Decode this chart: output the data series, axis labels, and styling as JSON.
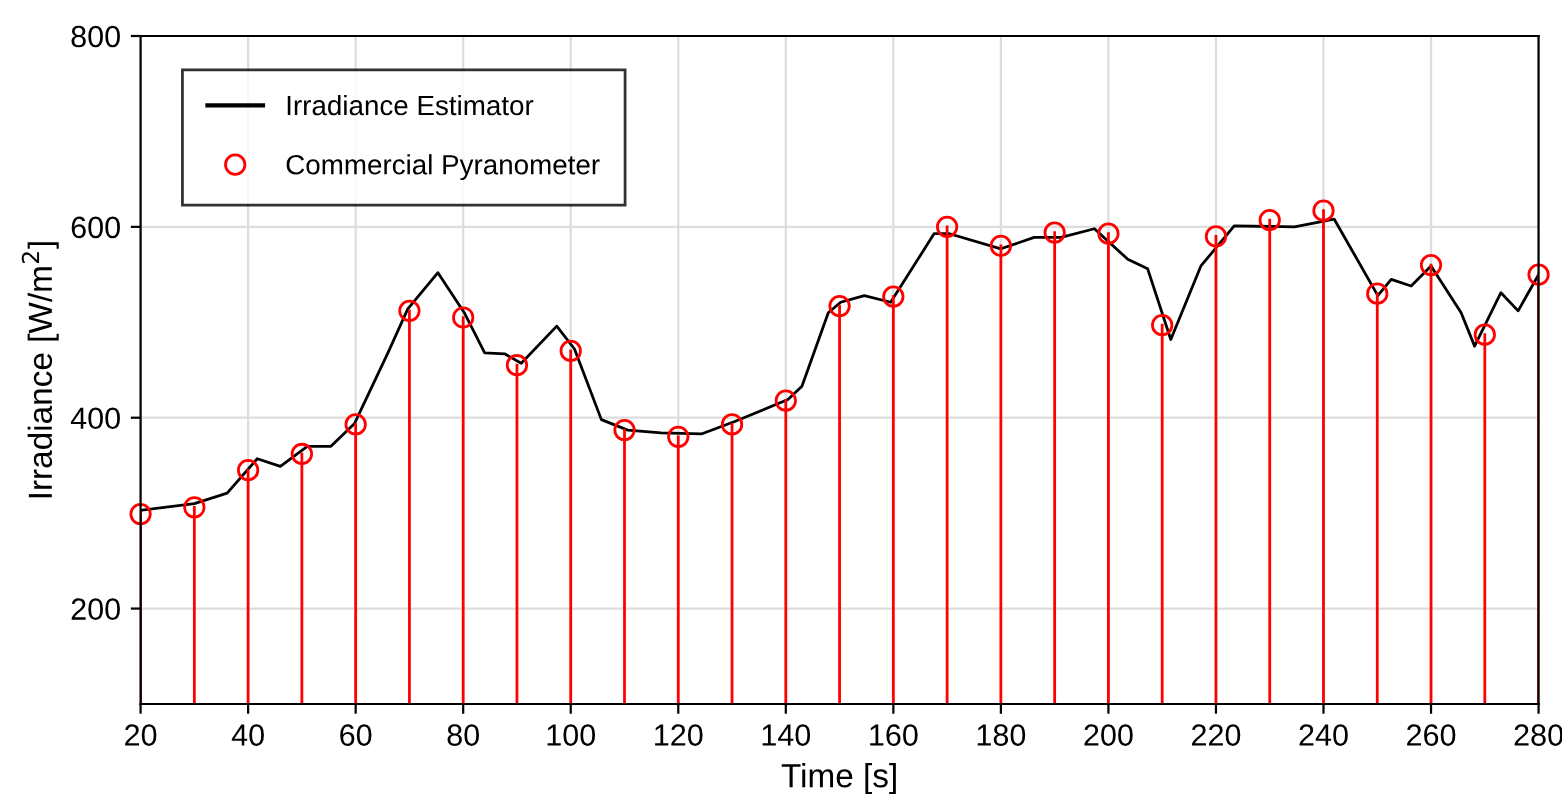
{
  "chart_data": {
    "type": "line",
    "xlabel": "Time [s]",
    "ylabel": "Irradiance [W/m$^{2}$]",
    "xlim": [
      20,
      280
    ],
    "ylim": [
      100,
      800
    ],
    "xticks": [
      20,
      40,
      60,
      80,
      100,
      120,
      140,
      160,
      180,
      200,
      220,
      240,
      260,
      280
    ],
    "yticks": [
      200,
      400,
      600,
      800
    ],
    "grid": true,
    "legend": "top left",
    "series": [
      {
        "name": "Irradiance Estimator",
        "color": "#000000",
        "marker": "none",
        "line_style": "solid",
        "x": [
          20,
          30,
          36.1,
          41.7,
          46,
          51,
          55.4,
          59.8,
          66,
          69.7,
          75.3,
          80.2,
          84,
          87.7,
          90.8,
          97.4,
          100.7,
          105.7,
          110.6,
          116.8,
          124.3,
          130.5,
          140.4,
          143,
          147.9,
          150.2,
          154.6,
          159.5,
          167.6,
          170.3,
          180,
          186.2,
          191.2,
          197.4,
          203.6,
          207.3,
          211.6,
          217.2,
          223.4,
          234.6,
          242,
          250.1,
          252.6,
          256.3,
          260,
          265.6,
          268.1,
          273,
          276.2,
          280
        ],
        "values": [
          303,
          310,
          321,
          357,
          349,
          370,
          370,
          394,
          468,
          514,
          552,
          510,
          468,
          467,
          457,
          496,
          472,
          398,
          387,
          384,
          383,
          396,
          419,
          433,
          510,
          521,
          528,
          521,
          593,
          593,
          577,
          589,
          589,
          598,
          566,
          556,
          482,
          559,
          601,
          600,
          608,
          528,
          545,
          538,
          559,
          510,
          475,
          531,
          512,
          550
        ]
      },
      {
        "name": "Commercial Pyranometer",
        "type": "lollipop",
        "color": "#ff0000",
        "marker": "circle",
        "x": [
          20,
          30,
          40,
          50,
          60,
          70,
          80,
          90,
          100,
          110,
          120,
          130,
          140,
          150,
          160,
          170,
          180,
          190,
          200,
          210,
          220,
          230,
          240,
          250,
          260,
          270,
          280
        ],
        "values": [
          299,
          306,
          345,
          362,
          393,
          512,
          505,
          455,
          470,
          387,
          380,
          393,
          418,
          517,
          527,
          600,
          580,
          594,
          593,
          497,
          590,
          607,
          617,
          530,
          560,
          487,
          550
        ]
      }
    ]
  }
}
